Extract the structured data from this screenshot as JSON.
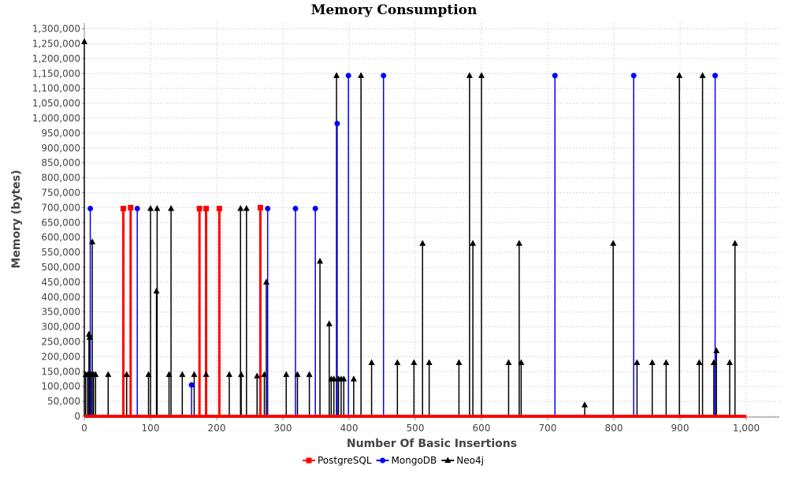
{
  "chart_data": {
    "type": "scatter",
    "title": "Memory Consumption",
    "xlabel": "Number Of Basic Insertions",
    "ylabel": "Memory (bytes)",
    "xlim": [
      0,
      1050
    ],
    "ylim": [
      0,
      1320000
    ],
    "xticks": [
      0,
      100,
      200,
      300,
      400,
      500,
      600,
      700,
      800,
      900,
      1000
    ],
    "xtick_labels": [
      "0",
      "100",
      "200",
      "300",
      "400",
      "500",
      "600",
      "700",
      "800",
      "900",
      "1,000"
    ],
    "yticks": [
      0,
      50000,
      100000,
      150000,
      200000,
      250000,
      300000,
      350000,
      400000,
      450000,
      500000,
      550000,
      600000,
      650000,
      700000,
      750000,
      800000,
      850000,
      900000,
      950000,
      1000000,
      1050000,
      1100000,
      1150000,
      1200000,
      1250000,
      1300000
    ],
    "ytick_labels": [
      "0",
      "50,000",
      "100,000",
      "150,000",
      "200,000",
      "250,000",
      "300,000",
      "350,000",
      "400,000",
      "450,000",
      "500,000",
      "550,000",
      "600,000",
      "650,000",
      "700,000",
      "750,000",
      "800,000",
      "850,000",
      "900,000",
      "950,000",
      "1,000,000",
      "1,050,000",
      "1,100,000",
      "1,150,000",
      "1,200,000",
      "1,250,000",
      "1,300,000"
    ],
    "grid": true,
    "legend_position": "bottom",
    "baseline_x_range": [
      0,
      1000
    ],
    "series": [
      {
        "name": "PostgreSQL",
        "color": "#ff0000",
        "marker": "square",
        "points": [
          [
            59,
            697000
          ],
          [
            70,
            700000
          ],
          [
            174,
            697000
          ],
          [
            184,
            697000
          ],
          [
            204,
            697000
          ],
          [
            266,
            700000
          ]
        ]
      },
      {
        "name": "MongoDB",
        "color": "#0000ff",
        "marker": "circle",
        "points": [
          [
            9,
            697000
          ],
          [
            80,
            697000
          ],
          [
            162,
            105000
          ],
          [
            277,
            697000
          ],
          [
            319,
            697000
          ],
          [
            349,
            697000
          ],
          [
            382,
            982000
          ],
          [
            399,
            1143000
          ],
          [
            452,
            1143000
          ],
          [
            711,
            1143000
          ],
          [
            830,
            1143000
          ],
          [
            953,
            1143000
          ]
        ]
      },
      {
        "name": "Neo4j",
        "color": "#000000",
        "marker": "triangle",
        "points": [
          [
            0,
            1257000
          ],
          [
            2,
            140000
          ],
          [
            5,
            140000
          ],
          [
            7,
            275000
          ],
          [
            8,
            265000
          ],
          [
            10,
            140000
          ],
          [
            12,
            585000
          ],
          [
            14,
            140000
          ],
          [
            17,
            140000
          ],
          [
            36,
            140000
          ],
          [
            64,
            140000
          ],
          [
            97,
            140000
          ],
          [
            100,
            697000
          ],
          [
            109,
            420000
          ],
          [
            110,
            697000
          ],
          [
            128,
            140000
          ],
          [
            131,
            697000
          ],
          [
            148,
            140000
          ],
          [
            166,
            140000
          ],
          [
            184,
            140000
          ],
          [
            219,
            140000
          ],
          [
            236,
            697000
          ],
          [
            237,
            140000
          ],
          [
            245,
            697000
          ],
          [
            261,
            135000
          ],
          [
            272,
            140000
          ],
          [
            275,
            450000
          ],
          [
            305,
            140000
          ],
          [
            322,
            140000
          ],
          [
            340,
            140000
          ],
          [
            356,
            520000
          ],
          [
            370,
            310000
          ],
          [
            373,
            125000
          ],
          [
            377,
            125000
          ],
          [
            381,
            1143000
          ],
          [
            384,
            125000
          ],
          [
            388,
            125000
          ],
          [
            392,
            125000
          ],
          [
            407,
            125000
          ],
          [
            418,
            1143000
          ],
          [
            434,
            180000
          ],
          [
            473,
            180000
          ],
          [
            498,
            180000
          ],
          [
            511,
            580000
          ],
          [
            521,
            180000
          ],
          [
            566,
            180000
          ],
          [
            582,
            1143000
          ],
          [
            587,
            580000
          ],
          [
            600,
            1143000
          ],
          [
            641,
            180000
          ],
          [
            657,
            580000
          ],
          [
            660,
            180000
          ],
          [
            756,
            38000
          ],
          [
            799,
            580000
          ],
          [
            835,
            180000
          ],
          [
            858,
            180000
          ],
          [
            879,
            180000
          ],
          [
            899,
            1143000
          ],
          [
            929,
            180000
          ],
          [
            934,
            1143000
          ],
          [
            951,
            180000
          ],
          [
            955,
            220000
          ],
          [
            975,
            180000
          ],
          [
            983,
            580000
          ]
        ]
      }
    ]
  }
}
